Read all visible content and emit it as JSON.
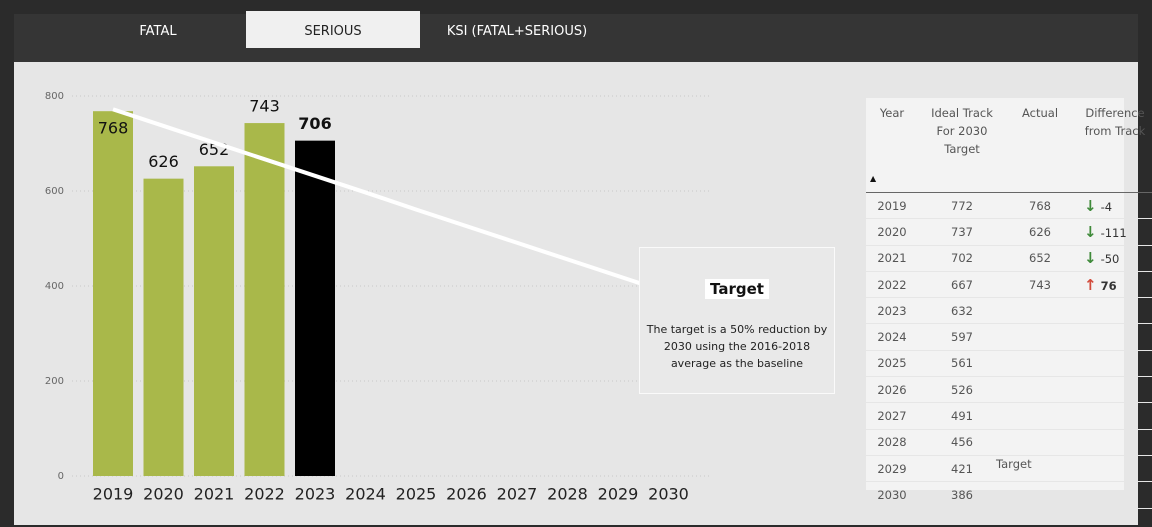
{
  "tabs": [
    "FATAL",
    "SERIOUS",
    "KSI (FATAL+SERIOUS)"
  ],
  "active_tab": 1,
  "chart_data": {
    "type": "bar",
    "categories": [
      "2019",
      "2020",
      "2021",
      "2022",
      "2023",
      "2024",
      "2025",
      "2026",
      "2027",
      "2028",
      "2029",
      "2030"
    ],
    "values": [
      768,
      626,
      652,
      743,
      706,
      null,
      null,
      null,
      null,
      null,
      null,
      null
    ],
    "colors": [
      "#a9b84a",
      "#a9b84a",
      "#a9b84a",
      "#a9b84a",
      "#000000",
      null,
      null,
      null,
      null,
      null,
      null,
      null
    ],
    "target_line": {
      "values": [
        772,
        737,
        702,
        667,
        632,
        597,
        561,
        526,
        491,
        456,
        421,
        386
      ],
      "color": "#ffffff"
    },
    "ylim": [
      0,
      800
    ],
    "yticks": [
      0,
      200,
      400,
      600,
      800
    ],
    "grid": true,
    "annotation": {
      "title": "Target",
      "text": "The target is a 50% reduction by 2030 using the 2016-2018 average as the baseline"
    }
  },
  "table": {
    "columns": [
      "Year",
      "Ideal Track For 2030 Target",
      "Actual",
      "Difference from Track"
    ],
    "rows": [
      [
        2019,
        772,
        768,
        -4
      ],
      [
        2020,
        737,
        626,
        -111
      ],
      [
        2021,
        702,
        652,
        -50
      ],
      [
        2022,
        667,
        743,
        76
      ],
      [
        2023,
        632,
        null,
        null
      ],
      [
        2024,
        597,
        null,
        null
      ],
      [
        2025,
        561,
        null,
        null
      ],
      [
        2026,
        526,
        null,
        null
      ],
      [
        2027,
        491,
        null,
        null
      ],
      [
        2028,
        456,
        null,
        null
      ],
      [
        2029,
        421,
        null,
        null
      ],
      [
        2030,
        386,
        null,
        null
      ]
    ],
    "note": "Target"
  }
}
